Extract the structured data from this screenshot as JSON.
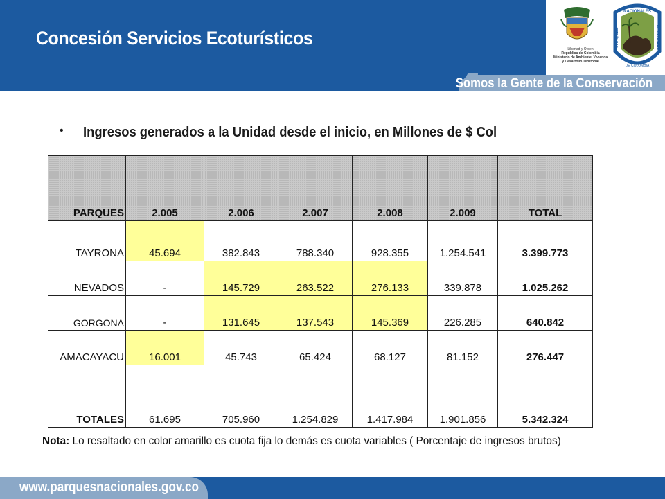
{
  "header": {
    "title": "Concesión Servicios Ecoturísticos",
    "slogan": "Somos la Gente de la Conservación",
    "gov_text": [
      "Libertad y Orden",
      "República de Colombia",
      "Ministerio de Ambiente, Vivienda",
      "y Desarrollo Territorial"
    ],
    "parks_logo_text": [
      "PARQUES",
      "NACIONALES",
      "NATURALES",
      "DE COLOMBIA"
    ]
  },
  "bullet": {
    "symbol": "•",
    "text": "Ingresos generados a la Unidad desde el inicio, en Millones de $ Col"
  },
  "table": {
    "columns": [
      "PARQUES",
      "2.005",
      "2.006",
      "2.007",
      "2.008",
      "2.009",
      "TOTAL"
    ],
    "rows": [
      {
        "name": "TAYRONA",
        "values": [
          "45.694",
          "382.843",
          "788.340",
          "928.355",
          "1.254.541"
        ],
        "total": "3.399.773"
      },
      {
        "name": "NEVADOS",
        "values": [
          "-",
          "145.729",
          "263.522",
          "276.133",
          "339.878"
        ],
        "total": "1.025.262"
      },
      {
        "name": "GORGONA",
        "values": [
          "-",
          "131.645",
          "137.543",
          "145.369",
          "226.285"
        ],
        "total": "640.842"
      },
      {
        "name": "AMACAYACU",
        "values": [
          "16.001",
          "45.743",
          "65.424",
          "68.127",
          "81.152"
        ],
        "total": "276.447"
      }
    ],
    "totals": {
      "name": "TOTALES",
      "values": [
        "61.695",
        "705.960",
        "1.254.829",
        "1.417.984",
        "1.901.856"
      ],
      "total": "5.342.324"
    },
    "highlight_color": "#ffff99"
  },
  "note": {
    "label": "Nota:",
    "text": " Lo resaltado en color amarillo es cuota fija lo demás es cuota variables ( Porcentaje de ingresos brutos)"
  },
  "footer": {
    "url": "www.parquesnacionales.gov.co"
  },
  "colors": {
    "primary_blue": "#1c5aa0",
    "band_blue": "#8ba8c7",
    "highlight_yellow": "#ffff99"
  }
}
